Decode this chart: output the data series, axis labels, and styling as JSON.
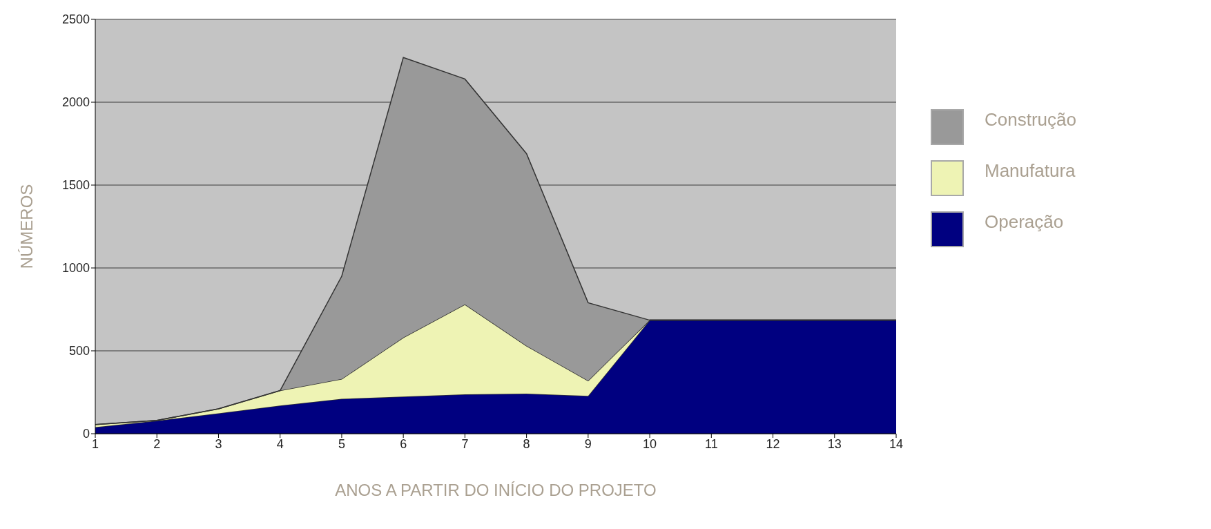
{
  "chart_data": {
    "type": "area",
    "stacked": true,
    "xlabel": "ANOS A PARTIR DO INÍCIO DO PROJETO",
    "ylabel": "NÚMEROS",
    "x": [
      1,
      2,
      3,
      4,
      5,
      6,
      7,
      8,
      9,
      10,
      11,
      12,
      13,
      14
    ],
    "series": [
      {
        "name": "Operação",
        "color": "#000080",
        "values": [
          40,
          78,
          123,
          170,
          210,
          224,
          237,
          242,
          228,
          685,
          685,
          685,
          685,
          685
        ]
      },
      {
        "name": "Manufatura",
        "color": "#eef3b4",
        "values": [
          15,
          2,
          27,
          90,
          120,
          356,
          543,
          288,
          92,
          0,
          0,
          0,
          0,
          0
        ]
      },
      {
        "name": "Construção",
        "color": "#999999",
        "values": [
          0,
          0,
          0,
          0,
          620,
          1690,
          1360,
          1160,
          470,
          0,
          0,
          0,
          0,
          0
        ]
      }
    ],
    "xlim": [
      1,
      14
    ],
    "xticks": [
      1,
      2,
      3,
      4,
      5,
      6,
      7,
      8,
      9,
      10,
      11,
      12,
      13,
      14
    ],
    "ylim": [
      0,
      2500
    ],
    "yticks": [
      0,
      500,
      1000,
      1500,
      2000,
      2500
    ],
    "grid": "y",
    "legend": "right"
  }
}
